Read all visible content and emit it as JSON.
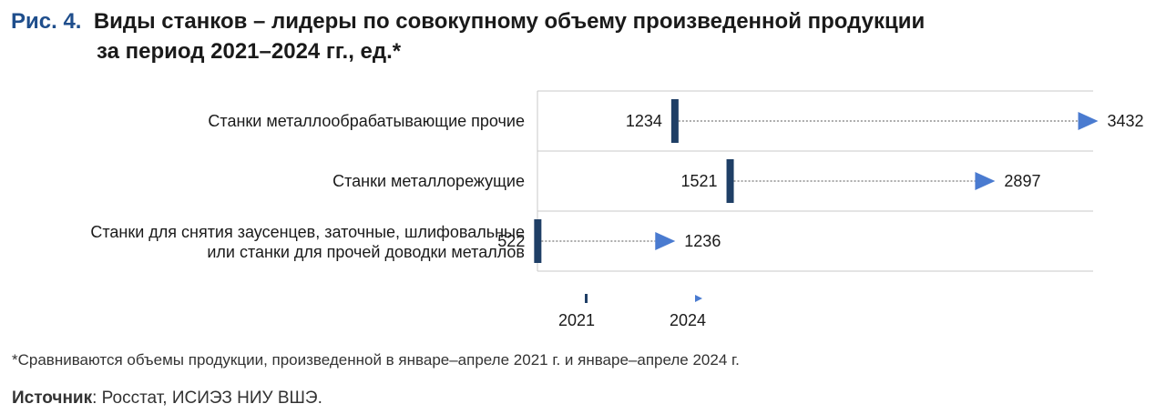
{
  "figure": {
    "label": "Рис. 4.",
    "title_line1": "Виды станков – лидеры по совокупному объему произведенной продукции",
    "title_line2": "за период 2021–2024 гг., ед.*"
  },
  "chart_data": {
    "type": "dumbbell",
    "title": "Виды станков – лидеры по совокупному объему произведенной продукции за период 2021–2024 гг., ед.*",
    "categories": [
      [
        "Станки металлообрабатывающие прочие"
      ],
      [
        "Станки металлорежущие"
      ],
      [
        "Станки для снятия заусенцев, заточные, шлифовальные",
        "или станки для прочей доводки металлов"
      ]
    ],
    "series": [
      {
        "name": "2021",
        "values": [
          1234,
          1521,
          522
        ],
        "marker": "bar"
      },
      {
        "name": "2024",
        "values": [
          3432,
          2897,
          1236
        ],
        "marker": "arrow"
      }
    ],
    "xlim": [
      0,
      3500
    ],
    "legend": {
      "position": "bottom-left",
      "items": [
        "2021",
        "2024"
      ]
    },
    "colors": {
      "marker_2021": "#1f3f66",
      "marker_2024": "#4a7bd0",
      "connector": "#555555",
      "grid": "#c8c8c8"
    }
  },
  "footnote": "*Сравниваются объемы продукции, произведенной в январе–апреле 2021 г. и январе–апреле 2024 г.",
  "source": {
    "label": "Источник",
    "text": ": Росстат, ИСИЭЗ НИУ ВШЭ."
  }
}
